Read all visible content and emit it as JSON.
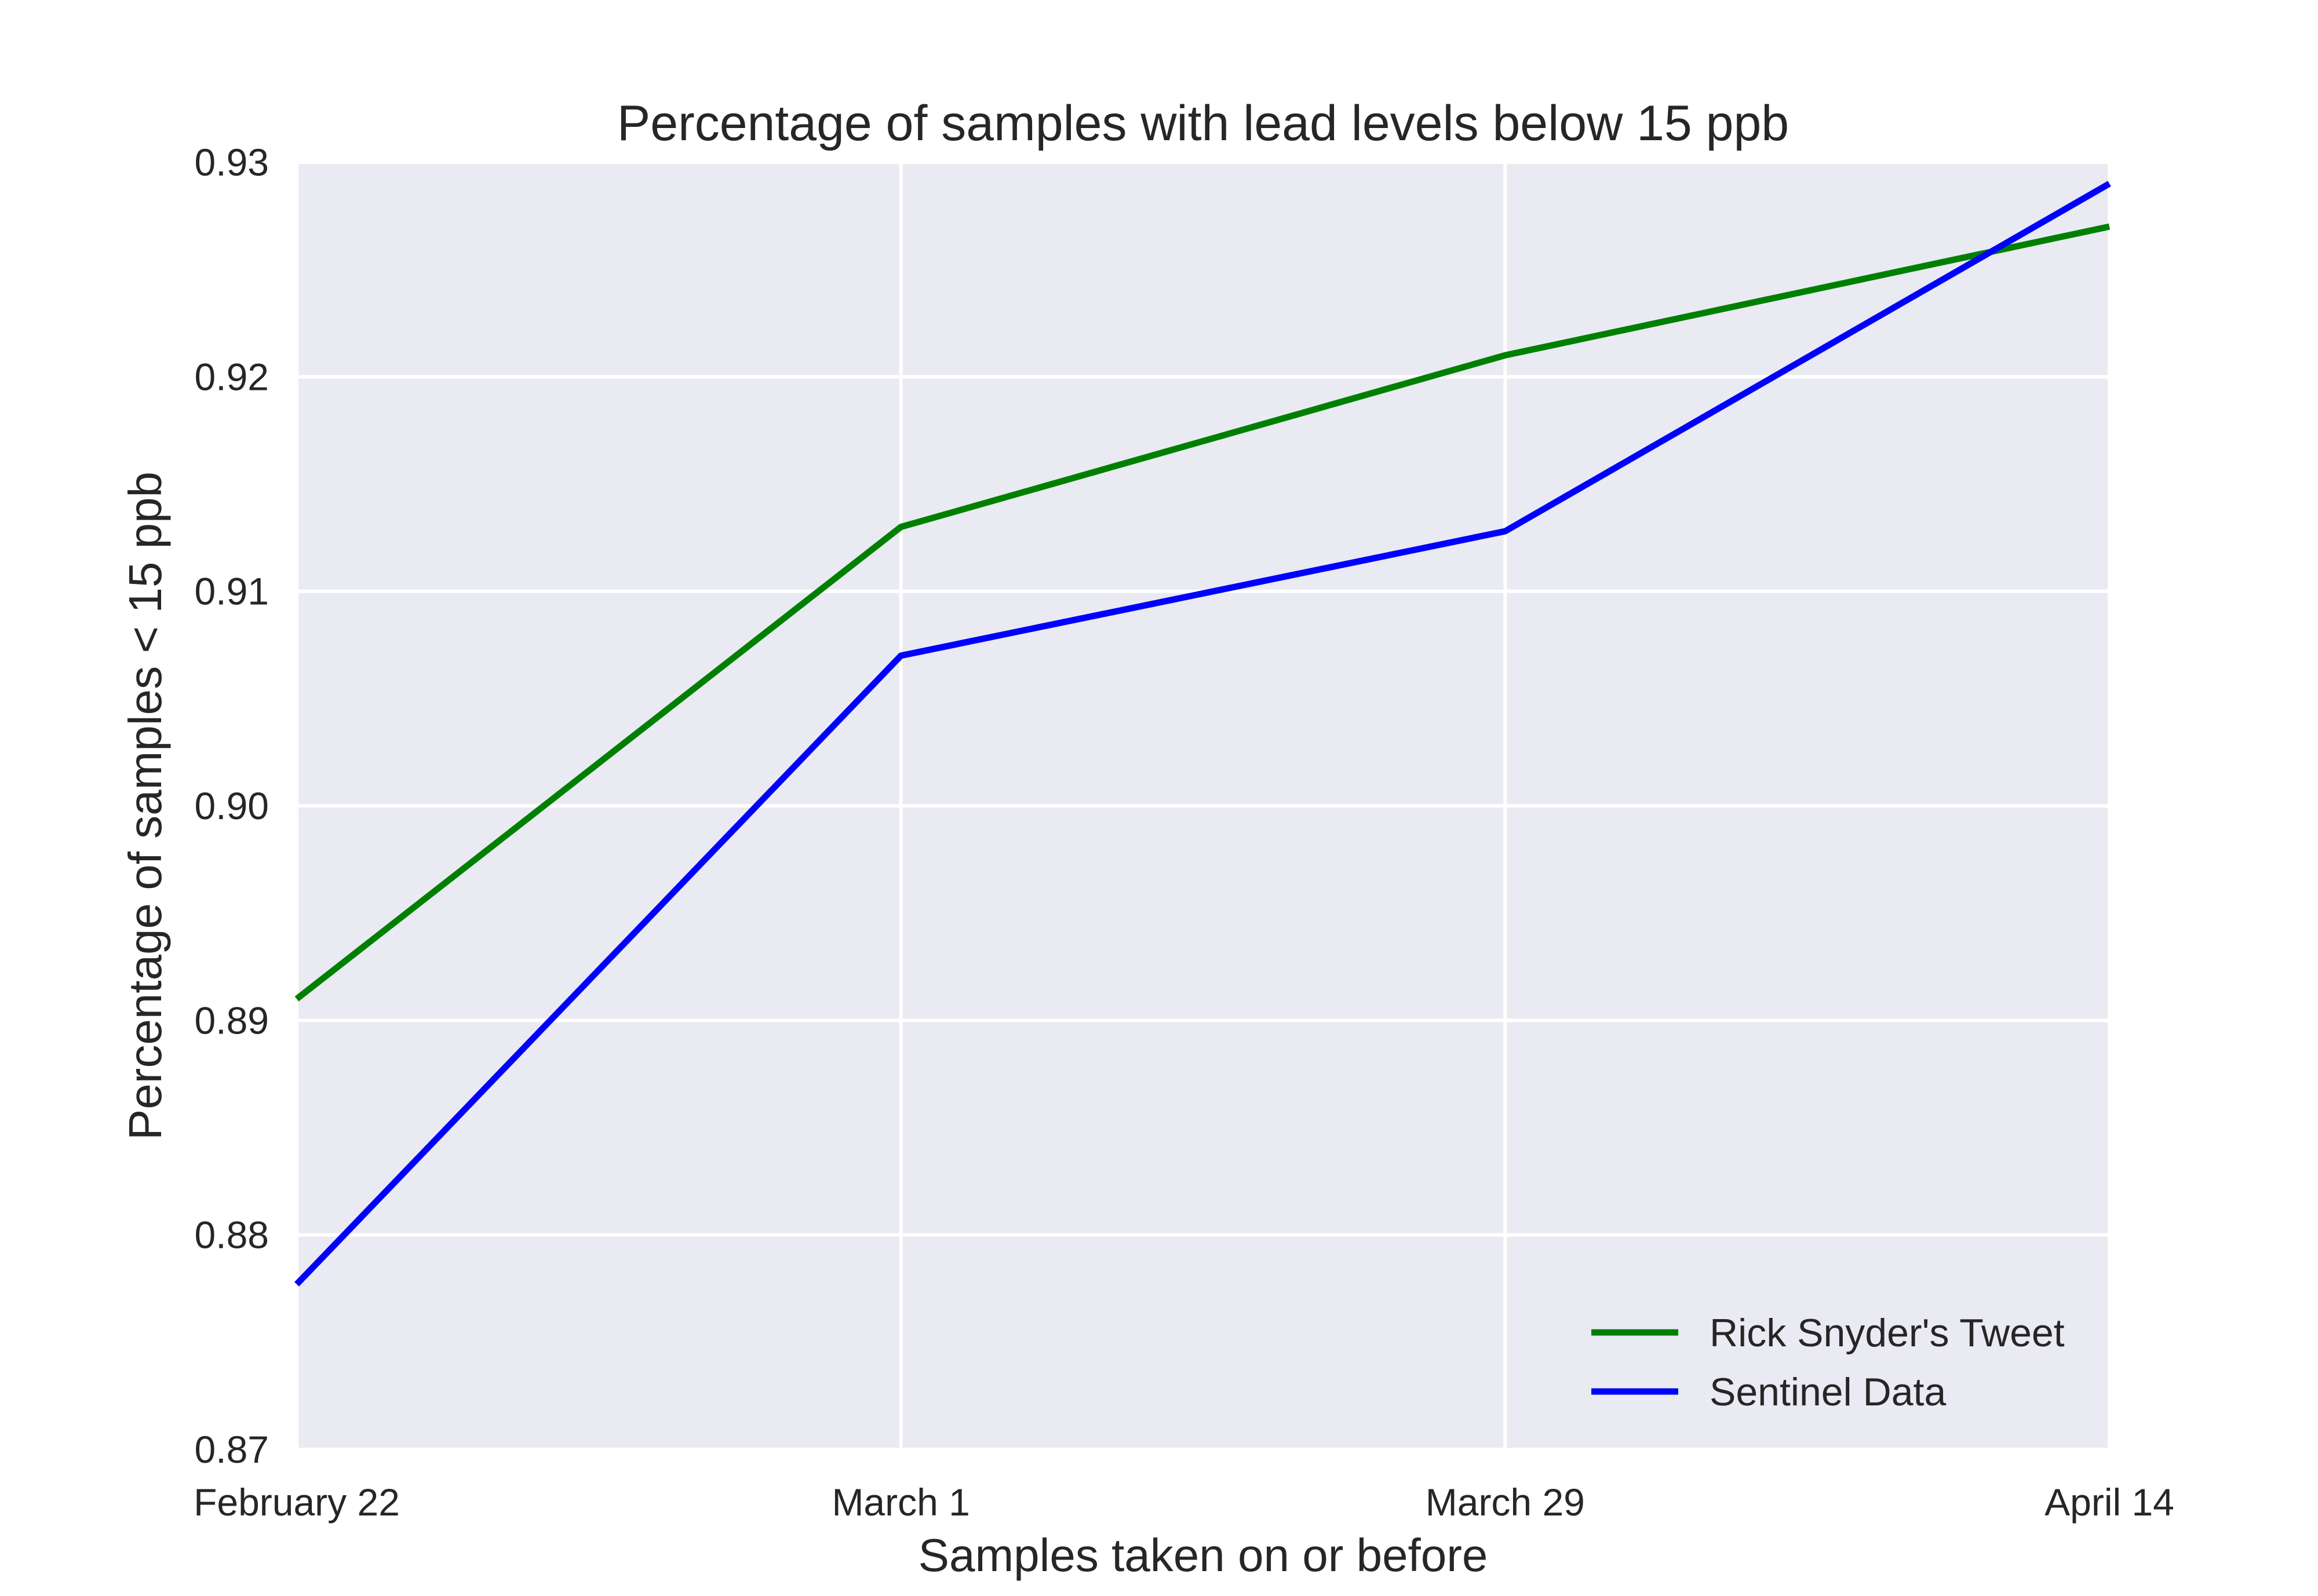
{
  "chart_data": {
    "type": "line",
    "title": "Percentage of samples with lead levels below 15 ppb",
    "xlabel": "Samples taken on or before",
    "ylabel": "Percentage of samples < 15 ppb",
    "categories": [
      "February 22",
      "March 1",
      "March 29",
      "April 14"
    ],
    "ylim": [
      0.87,
      0.93
    ],
    "yticks": [
      "0.87",
      "0.88",
      "0.89",
      "0.90",
      "0.91",
      "0.92",
      "0.93"
    ],
    "grid": true,
    "legend_position": "bottom-right",
    "background_color": "#eaeaf2",
    "series": [
      {
        "name": "Rick Snyder's Tweet",
        "color": "#008000",
        "values": [
          0.891,
          0.913,
          0.921,
          0.927
        ]
      },
      {
        "name": "Sentinel Data",
        "color": "#0000ff",
        "values": [
          0.8777,
          0.907,
          0.9128,
          0.929
        ]
      }
    ]
  }
}
